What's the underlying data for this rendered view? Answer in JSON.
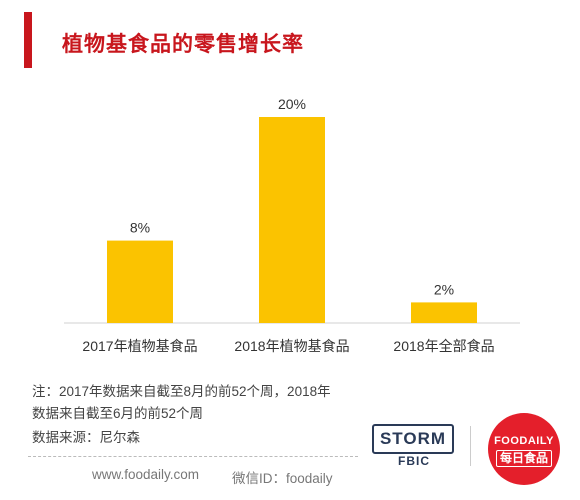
{
  "header": {
    "title": "植物基食品的零售增长率"
  },
  "chart_data": {
    "type": "bar",
    "title": "植物基食品的零售增长率",
    "categories": [
      "2017年植物基食品",
      "2018年植物基食品",
      "2018年全部食品"
    ],
    "values": [
      8,
      20,
      2
    ],
    "data_labels": [
      "8%",
      "20%",
      "2%"
    ],
    "unit": "%",
    "ylim": [
      0,
      20
    ],
    "bar_color": "#fbc300",
    "grid": false,
    "legend": "none"
  },
  "notes": {
    "line1": "注：2017年数据来自截至8月的前52个周，2018年",
    "line2": "数据来自截至6月的前52个周",
    "source": "数据来源：尼尔森"
  },
  "footer": {
    "website": "www.foodaily.com",
    "wechat": "微信ID：foodaily"
  },
  "logos": {
    "storm": "STORM",
    "storm_sub": "FBIC",
    "foodaily": "FOODAILY",
    "foodaily_cn": "每日食品"
  },
  "colors": {
    "accent": "#c8161d",
    "bar": "#fbc300",
    "logo_red": "#e41f2b",
    "logo_navy": "#2a3a57"
  }
}
